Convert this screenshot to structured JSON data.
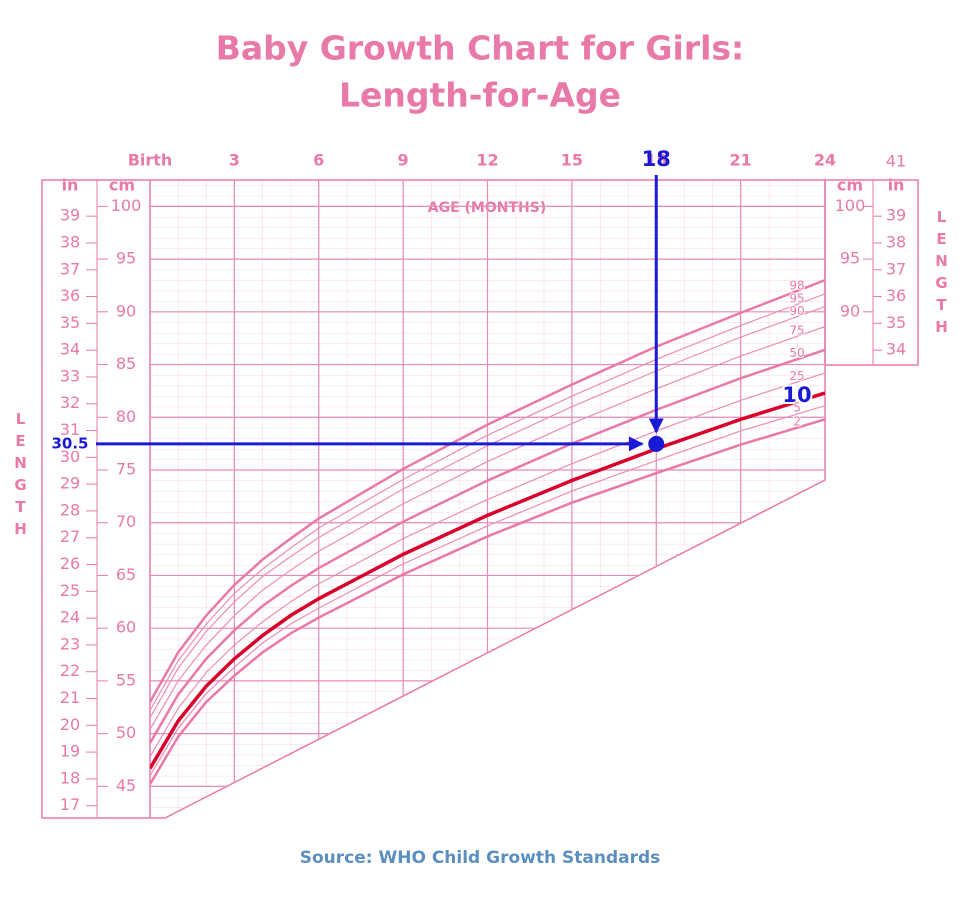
{
  "title": [
    "Baby Growth Chart for Girls:",
    "Length-for-Age"
  ],
  "source": "Source: WHO Child Growth Standards",
  "chart_data": {
    "type": "line",
    "x_label": "AGE (MONTHS)",
    "y_label": "cm",
    "y2_label": "in",
    "side_label": "LENGTH",
    "corner_label": "41",
    "x": [
      0,
      1,
      2,
      3,
      4,
      5,
      6,
      9,
      12,
      15,
      18,
      21,
      24
    ],
    "xlim": [
      0,
      24
    ],
    "xticks": [
      {
        "value": 0,
        "label": "Birth"
      },
      3,
      6,
      9,
      12,
      15,
      18,
      21,
      24
    ],
    "ylim": [
      42,
      102.5
    ],
    "yticks": [
      45,
      50,
      55,
      60,
      65,
      70,
      75,
      80,
      85,
      90,
      95,
      100
    ],
    "right_yticks": [
      90,
      95,
      100
    ],
    "y2lim": [
      16.54,
      40.35
    ],
    "y2ticks": [
      17,
      18,
      19,
      20,
      21,
      22,
      23,
      24,
      25,
      26,
      27,
      28,
      29,
      30,
      31,
      32,
      33,
      34,
      35,
      36,
      37,
      38,
      39
    ],
    "right_y2ticks": [
      34,
      35,
      36,
      37,
      38,
      39
    ],
    "grid": true,
    "series": [
      {
        "name": "98",
        "color": "#e879a8",
        "line_width": 2.5,
        "values": [
          53.0,
          57.7,
          61.2,
          64.1,
          66.5,
          68.5,
          70.4,
          75.1,
          79.3,
          83.1,
          86.7,
          89.9,
          93.0
        ]
      },
      {
        "name": "95",
        "color": "#ea8db5",
        "line_width": 1.2,
        "values": [
          52.2,
          56.9,
          60.4,
          63.3,
          65.6,
          67.6,
          69.5,
          74.1,
          78.3,
          82.0,
          85.5,
          88.7,
          91.7
        ]
      },
      {
        "name": "90",
        "color": "#ea8db5",
        "line_width": 1.2,
        "values": [
          51.5,
          56.2,
          59.7,
          62.5,
          64.9,
          66.8,
          68.6,
          73.2,
          77.3,
          81.0,
          84.4,
          87.6,
          90.5
        ]
      },
      {
        "name": "75",
        "color": "#ea8db5",
        "line_width": 1.2,
        "values": [
          50.4,
          55.0,
          58.4,
          61.2,
          63.6,
          65.5,
          67.3,
          71.8,
          75.8,
          79.4,
          82.7,
          85.8,
          88.6
        ]
      },
      {
        "name": "50",
        "color": "#e879a8",
        "line_width": 2.5,
        "values": [
          49.1,
          53.7,
          57.1,
          59.8,
          62.1,
          64.0,
          65.7,
          70.1,
          74.0,
          77.5,
          80.7,
          83.7,
          86.4
        ]
      },
      {
        "name": "25",
        "color": "#ea8db5",
        "line_width": 1.2,
        "values": [
          47.8,
          52.4,
          55.8,
          58.4,
          60.6,
          62.5,
          64.2,
          68.5,
          72.2,
          75.6,
          78.7,
          81.6,
          84.2
        ]
      },
      {
        "name": "10",
        "color": "#d8002a",
        "line_width": 3.5,
        "emphasis": true,
        "values": [
          46.7,
          51.2,
          54.5,
          57.1,
          59.3,
          61.2,
          62.8,
          67.0,
          70.7,
          74.0,
          77.0,
          79.8,
          82.3
        ]
      },
      {
        "name": "5",
        "color": "#ea8db5",
        "line_width": 1.2,
        "values": [
          46.0,
          50.5,
          53.8,
          56.3,
          58.6,
          60.4,
          61.9,
          66.1,
          69.7,
          73.0,
          75.9,
          78.7,
          81.1
        ]
      },
      {
        "name": "2",
        "color": "#e879a8",
        "line_width": 2.5,
        "values": [
          45.2,
          49.7,
          53.0,
          55.5,
          57.7,
          59.5,
          61.0,
          65.1,
          68.7,
          71.9,
          74.7,
          77.4,
          79.8
        ]
      }
    ],
    "highlight": {
      "x": 18,
      "y": 30.5,
      "color": "#1a1ad6"
    }
  }
}
